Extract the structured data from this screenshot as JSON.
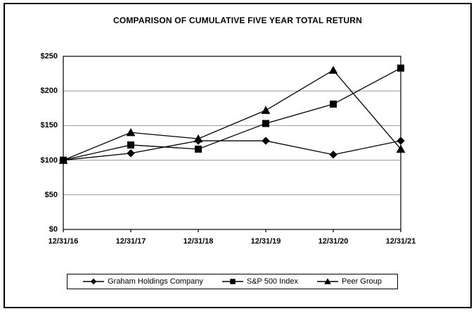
{
  "window": {
    "title": "COMPARISON OF CUMULATIVE FIVE YEAR TOTAL RETURN"
  },
  "chart_data": {
    "type": "line",
    "title": "COMPARISON OF CUMULATIVE FIVE YEAR TOTAL RETURN",
    "categories": [
      "12/31/16",
      "12/31/17",
      "12/31/18",
      "12/31/19",
      "12/31/20",
      "12/31/21"
    ],
    "series": [
      {
        "name": "Graham Holdings Company",
        "marker": "diamond",
        "marker_glyph": "◆",
        "color": "#000000",
        "values": [
          100,
          110,
          128,
          128,
          108,
          128
        ]
      },
      {
        "name": "S&P 500 Index",
        "marker": "square",
        "marker_glyph": "■",
        "color": "#000000",
        "values": [
          100,
          122,
          116,
          153,
          181,
          233
        ]
      },
      {
        "name": "Peer Group",
        "marker": "triangle",
        "marker_glyph": "▲",
        "color": "#000000",
        "values": [
          100,
          140,
          131,
          172,
          230,
          116
        ]
      }
    ],
    "xlabel": "",
    "ylabel": "",
    "y_ticks": [
      "$0",
      "$50",
      "$100",
      "$150",
      "$200",
      "$250"
    ],
    "y_tick_values": [
      0,
      50,
      100,
      150,
      200,
      250
    ],
    "ylim": [
      0,
      250
    ],
    "grid": true,
    "legend_position": "bottom",
    "colors": {
      "line": "#000000",
      "gridline": "#999999",
      "plot_border": "#000000",
      "background": "#ffffff"
    }
  }
}
